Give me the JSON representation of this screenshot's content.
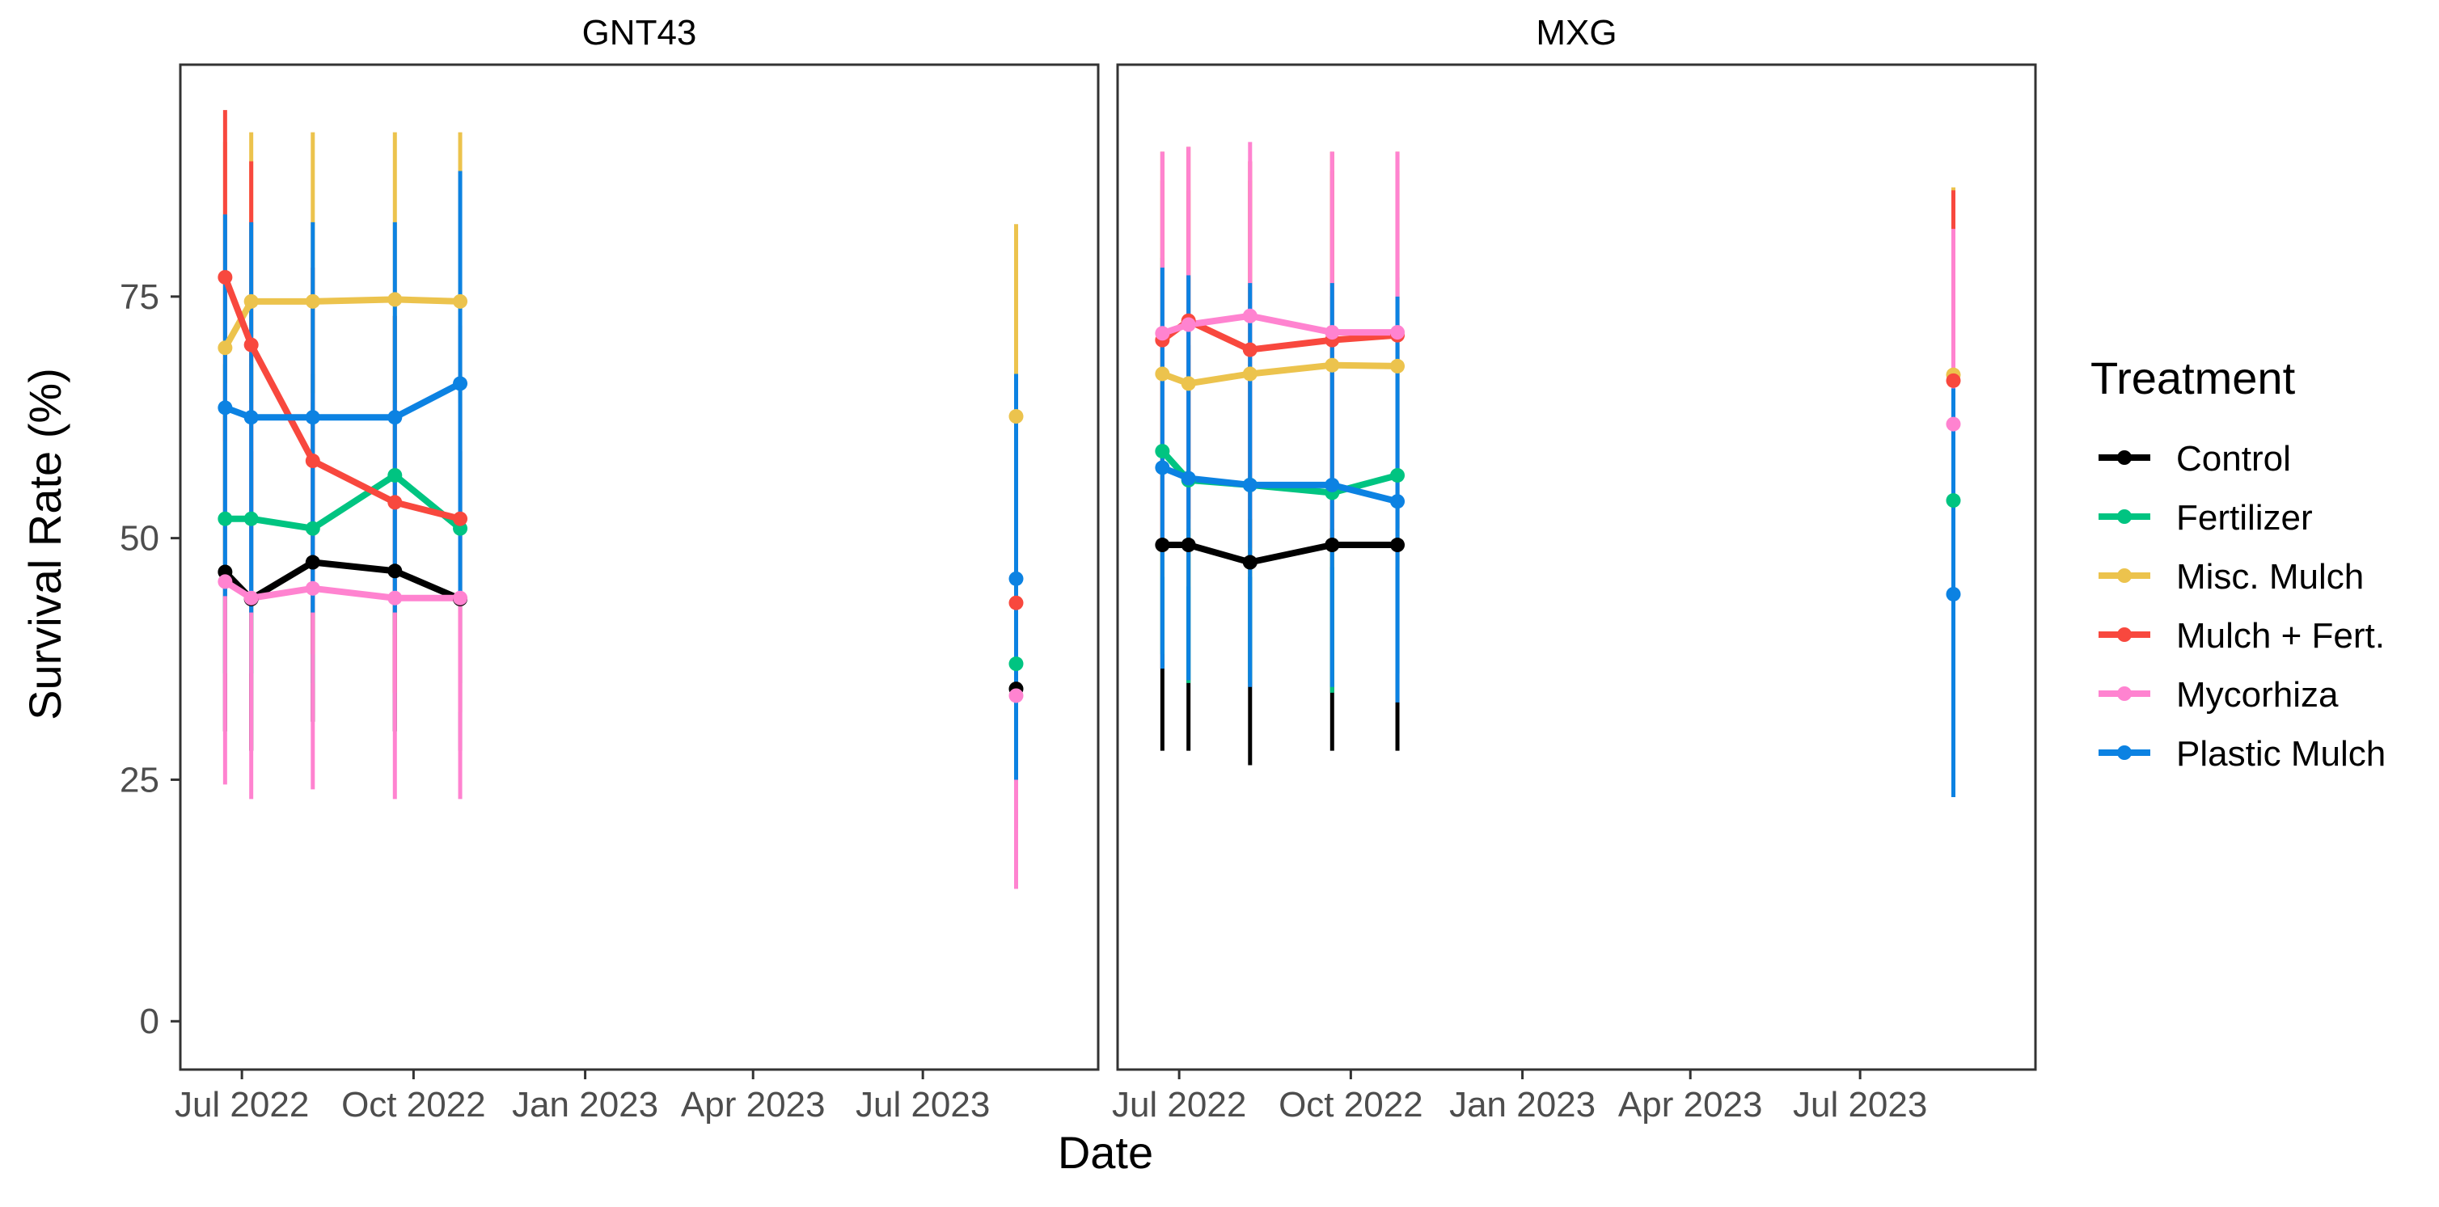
{
  "chart_data": {
    "type": "line",
    "xlabel": "Date",
    "ylabel": "Survival Rate (%)",
    "ylim": [
      -5,
      99
    ],
    "yticks": [
      0,
      25,
      50,
      75
    ],
    "xlim": [
      "2022-05-29",
      "2023-10-03"
    ],
    "xticks": [
      {
        "date": "2022-07-01",
        "label": "Jul 2022"
      },
      {
        "date": "2022-10-01",
        "label": "Oct 2022"
      },
      {
        "date": "2023-01-01",
        "label": "Jan 2023"
      },
      {
        "date": "2023-04-01",
        "label": "Apr 2023"
      },
      {
        "date": "2023-07-01",
        "label": "Jul 2023"
      }
    ],
    "grid": false,
    "legend": {
      "title": "Treatment",
      "placement": "right",
      "entries": [
        "Control",
        "Fertilizer",
        "Misc. Mulch",
        "Mulch + Fert.",
        "Mycorhiza",
        "Plastic Mulch"
      ]
    },
    "colors": {
      "Control": "#000000",
      "Fertilizer": "#00C481",
      "Misc. Mulch": "#ECC34D",
      "Mulch + Fert.": "#F8483E",
      "Mycorhiza": "#FF83D0",
      "Plastic Mulch": "#0C82E2"
    },
    "facets": [
      {
        "title": "GNT43",
        "series": [
          {
            "name": "Control",
            "points": [
              {
                "date": "2022-06-22",
                "y": 46.5,
                "lo": 30,
                "hi": 63
              },
              {
                "date": "2022-07-06",
                "y": 43.7,
                "lo": 28,
                "hi": 59
              },
              {
                "date": "2022-08-08",
                "y": 47.5,
                "lo": 31,
                "hi": 64
              },
              {
                "date": "2022-09-21",
                "y": 46.6,
                "lo": 30,
                "hi": 63
              },
              {
                "date": "2022-10-26",
                "y": 43.7,
                "lo": 28,
                "hi": 59
              },
              {
                "date": "2023-08-20",
                "y": 34.4,
                "lo": 20,
                "hi": 49
              }
            ]
          },
          {
            "name": "Fertilizer",
            "points": [
              {
                "date": "2022-06-22",
                "y": 52,
                "lo": 36,
                "hi": 68
              },
              {
                "date": "2022-07-06",
                "y": 52,
                "lo": 36,
                "hi": 68
              },
              {
                "date": "2022-08-08",
                "y": 51,
                "lo": 35,
                "hi": 67
              },
              {
                "date": "2022-09-21",
                "y": 56.5,
                "lo": 40,
                "hi": 73
              },
              {
                "date": "2022-10-26",
                "y": 51,
                "lo": 35,
                "hi": 67
              },
              {
                "date": "2023-08-20",
                "y": 37,
                "lo": 22,
                "hi": 52
              }
            ]
          },
          {
            "name": "Misc. Mulch",
            "points": [
              {
                "date": "2022-06-22",
                "y": 69.7,
                "lo": 48,
                "hi": 91
              },
              {
                "date": "2022-07-06",
                "y": 74.5,
                "lo": 57,
                "hi": 92
              },
              {
                "date": "2022-08-08",
                "y": 74.5,
                "lo": 57,
                "hi": 92
              },
              {
                "date": "2022-09-21",
                "y": 74.7,
                "lo": 57,
                "hi": 92
              },
              {
                "date": "2022-10-26",
                "y": 74.5,
                "lo": 57,
                "hi": 92
              },
              {
                "date": "2023-08-20",
                "y": 62.6,
                "lo": 42,
                "hi": 82.5
              }
            ]
          },
          {
            "name": "Mulch + Fert.",
            "points": [
              {
                "date": "2022-06-22",
                "y": 77,
                "lo": 60,
                "hi": 94.3
              },
              {
                "date": "2022-07-06",
                "y": 70,
                "lo": 51,
                "hi": 89
              },
              {
                "date": "2022-08-08",
                "y": 58,
                "lo": 38,
                "hi": 78
              },
              {
                "date": "2022-09-21",
                "y": 53.7,
                "lo": 34,
                "hi": 73
              },
              {
                "date": "2022-10-26",
                "y": 52,
                "lo": 32,
                "hi": 72
              },
              {
                "date": "2023-08-20",
                "y": 43.3,
                "lo": 25,
                "hi": 62
              }
            ]
          },
          {
            "name": "Mycorhiza",
            "points": [
              {
                "date": "2022-06-22",
                "y": 45.5,
                "lo": 24.5,
                "hi": 66
              },
              {
                "date": "2022-07-06",
                "y": 43.8,
                "lo": 23,
                "hi": 64
              },
              {
                "date": "2022-08-08",
                "y": 44.8,
                "lo": 24,
                "hi": 65
              },
              {
                "date": "2022-09-21",
                "y": 43.8,
                "lo": 23,
                "hi": 64
              },
              {
                "date": "2022-10-26",
                "y": 43.8,
                "lo": 23,
                "hi": 64
              },
              {
                "date": "2023-08-20",
                "y": 33.7,
                "lo": 13.7,
                "hi": 53
              }
            ]
          },
          {
            "name": "Plastic Mulch",
            "points": [
              {
                "date": "2022-06-22",
                "y": 63.5,
                "lo": 44,
                "hi": 83.5
              },
              {
                "date": "2022-07-06",
                "y": 62.5,
                "lo": 42.3,
                "hi": 82.7
              },
              {
                "date": "2022-08-08",
                "y": 62.5,
                "lo": 42.3,
                "hi": 82.7
              },
              {
                "date": "2022-09-21",
                "y": 62.5,
                "lo": 42.3,
                "hi": 82.7
              },
              {
                "date": "2022-10-26",
                "y": 66,
                "lo": 44,
                "hi": 88
              },
              {
                "date": "2023-08-20",
                "y": 45.8,
                "lo": 25,
                "hi": 67
              }
            ]
          }
        ]
      },
      {
        "title": "MXG",
        "series": [
          {
            "name": "Control",
            "points": [
              {
                "date": "2022-06-22",
                "y": 49.3,
                "lo": 28,
                "hi": 70
              },
              {
                "date": "2022-07-06",
                "y": 49.3,
                "lo": 28,
                "hi": 70
              },
              {
                "date": "2022-08-08",
                "y": 47.5,
                "lo": 26.5,
                "hi": 68
              },
              {
                "date": "2022-09-21",
                "y": 49.3,
                "lo": 28,
                "hi": 70
              },
              {
                "date": "2022-10-26",
                "y": 49.3,
                "lo": 28,
                "hi": 70
              }
            ]
          },
          {
            "name": "Fertilizer",
            "points": [
              {
                "date": "2022-06-22",
                "y": 59,
                "lo": 38,
                "hi": 79
              },
              {
                "date": "2022-07-06",
                "y": 56,
                "lo": 35,
                "hi": 77
              },
              {
                "date": "2022-08-08",
                "y": 55.5,
                "lo": 35,
                "hi": 76
              },
              {
                "date": "2022-09-21",
                "y": 54.7,
                "lo": 34,
                "hi": 75
              },
              {
                "date": "2022-10-26",
                "y": 56.5,
                "lo": 36,
                "hi": 77
              },
              {
                "date": "2023-08-20",
                "y": 53.9,
                "lo": 33,
                "hi": 75
              }
            ]
          },
          {
            "name": "Misc. Mulch",
            "points": [
              {
                "date": "2022-06-22",
                "y": 67,
                "lo": 46,
                "hi": 87
              },
              {
                "date": "2022-07-06",
                "y": 66,
                "lo": 45,
                "hi": 86
              },
              {
                "date": "2022-08-08",
                "y": 67,
                "lo": 46,
                "hi": 87
              },
              {
                "date": "2022-09-21",
                "y": 67.9,
                "lo": 47,
                "hi": 88
              },
              {
                "date": "2022-10-26",
                "y": 67.8,
                "lo": 47,
                "hi": 88
              },
              {
                "date": "2023-08-20",
                "y": 66.9,
                "lo": 46,
                "hi": 86.3
              }
            ]
          },
          {
            "name": "Mulch + Fert.",
            "points": [
              {
                "date": "2022-06-22",
                "y": 70.5,
                "lo": 50,
                "hi": 90
              },
              {
                "date": "2022-07-06",
                "y": 72.5,
                "lo": 52,
                "hi": 90.5
              },
              {
                "date": "2022-08-08",
                "y": 69.5,
                "lo": 49,
                "hi": 89
              },
              {
                "date": "2022-09-21",
                "y": 70.5,
                "lo": 50,
                "hi": 90
              },
              {
                "date": "2022-10-26",
                "y": 71,
                "lo": 51,
                "hi": 90
              },
              {
                "date": "2023-08-20",
                "y": 66.3,
                "lo": 46,
                "hi": 86
              }
            ]
          },
          {
            "name": "Mycorhiza",
            "points": [
              {
                "date": "2022-06-22",
                "y": 71.2,
                "lo": 50,
                "hi": 90
              },
              {
                "date": "2022-07-06",
                "y": 72.1,
                "lo": 51,
                "hi": 90.5
              },
              {
                "date": "2022-08-08",
                "y": 73,
                "lo": 52,
                "hi": 91
              },
              {
                "date": "2022-09-21",
                "y": 71.3,
                "lo": 51,
                "hi": 90
              },
              {
                "date": "2022-10-26",
                "y": 71.3,
                "lo": 51,
                "hi": 90
              },
              {
                "date": "2023-08-20",
                "y": 61.8,
                "lo": 40,
                "hi": 82
              }
            ]
          },
          {
            "name": "Plastic Mulch",
            "points": [
              {
                "date": "2022-06-22",
                "y": 57.3,
                "lo": 36.5,
                "hi": 78
              },
              {
                "date": "2022-07-06",
                "y": 56.2,
                "lo": 35.3,
                "hi": 77.2
              },
              {
                "date": "2022-08-08",
                "y": 55.5,
                "lo": 34.6,
                "hi": 76.4
              },
              {
                "date": "2022-09-21",
                "y": 55.5,
                "lo": 34.6,
                "hi": 76.4
              },
              {
                "date": "2022-10-26",
                "y": 53.8,
                "lo": 33,
                "hi": 75
              },
              {
                "date": "2023-08-20",
                "y": 44.2,
                "lo": 23.2,
                "hi": 65.5
              }
            ]
          }
        ]
      }
    ]
  }
}
